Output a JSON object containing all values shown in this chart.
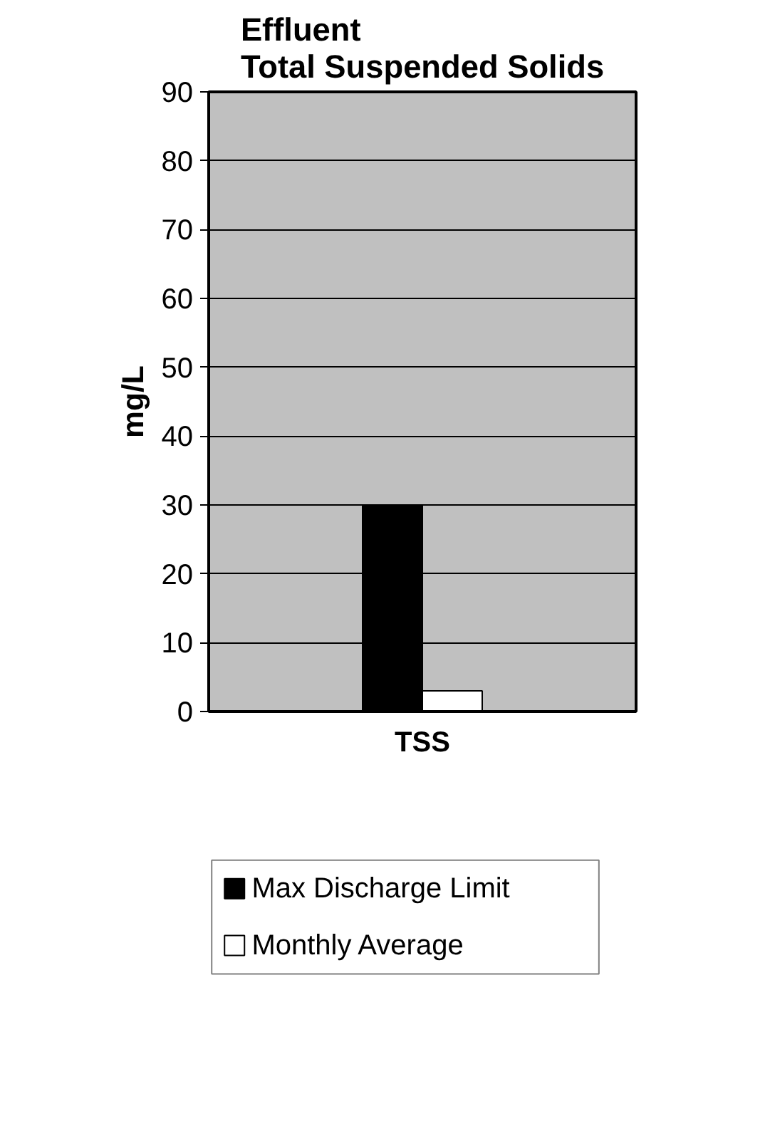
{
  "chart_data": {
    "type": "bar",
    "title": "Effluent\nTotal Suspended Solids",
    "ylabel": "mg/L",
    "categories": [
      "TSS"
    ],
    "series": [
      {
        "name": "Max Discharge Limit",
        "color": "#000000",
        "values": [
          30
        ]
      },
      {
        "name": "Monthly Average",
        "color": "#ffffff",
        "values": [
          3
        ]
      }
    ],
    "ylim": [
      0,
      90
    ],
    "yticks": [
      0,
      10,
      20,
      30,
      40,
      50,
      60,
      70,
      80,
      90
    ],
    "grid": "y",
    "legend": "bottom"
  }
}
